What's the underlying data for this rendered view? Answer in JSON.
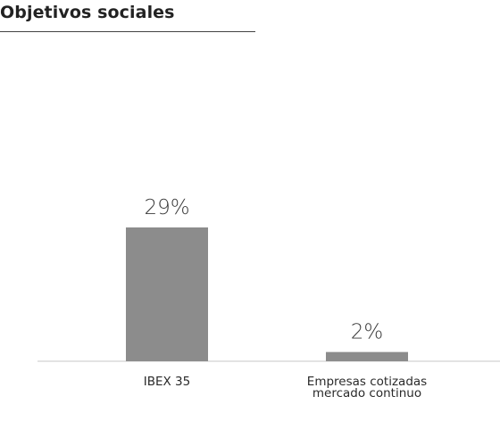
{
  "chart_data": {
    "type": "bar",
    "title": "Objetivos sociales",
    "categories": [
      "IBEX 35",
      "Empresas cotizadas mercado continuo"
    ],
    "category_lines": [
      [
        "IBEX 35"
      ],
      [
        "Empresas cotizadas",
        "mercado continuo"
      ]
    ],
    "values": [
      29,
      2
    ],
    "value_labels": [
      "29%",
      "2%"
    ],
    "unit": "%",
    "ylim": [
      0,
      50
    ],
    "grid": false,
    "legend": "none",
    "bar_color": "#8c8c8c"
  }
}
